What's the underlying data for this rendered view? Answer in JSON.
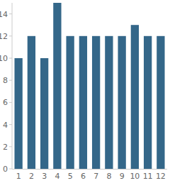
{
  "chart_data": {
    "type": "bar",
    "categories": [
      "1",
      "2",
      "3",
      "4",
      "5",
      "6",
      "7",
      "8",
      "9",
      "10",
      "11",
      "12"
    ],
    "values": [
      10,
      12,
      10,
      15,
      12,
      12,
      12,
      12,
      12,
      13,
      12,
      12
    ],
    "color": "#346789",
    "ylim": [
      0,
      15
    ],
    "yticks": [
      0,
      2,
      4,
      6,
      8,
      10,
      12,
      14
    ],
    "grid": false
  }
}
